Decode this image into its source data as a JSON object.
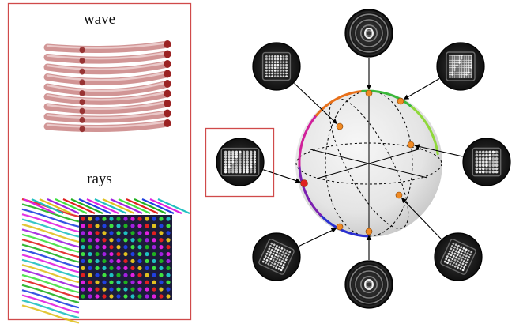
{
  "left_panel": {
    "top_label": "wave",
    "bottom_label": "rays",
    "frame_color": "#d04a4a"
  },
  "sphere": {
    "fill_color": "#e6e6e6",
    "point_color": "#f08a24",
    "selected_point_color": "#e02020",
    "curve_colors": [
      "#2a2fd0",
      "#7a1fb0",
      "#d0209a",
      "#e8701a",
      "#3ab83a",
      "#8fd83a"
    ]
  },
  "thumbnails": [
    {
      "id": "top",
      "pattern": "rings"
    },
    {
      "id": "upper-left",
      "pattern": "grid"
    },
    {
      "id": "upper-right",
      "pattern": "grid-dense"
    },
    {
      "id": "right",
      "pattern": "grid-sparse"
    },
    {
      "id": "lower-right",
      "pattern": "grid-tilted"
    },
    {
      "id": "bottom",
      "pattern": "rings"
    },
    {
      "id": "lower-left",
      "pattern": "grid-tilted"
    },
    {
      "id": "left-selected",
      "pattern": "grid-wide",
      "highlighted": true
    }
  ]
}
